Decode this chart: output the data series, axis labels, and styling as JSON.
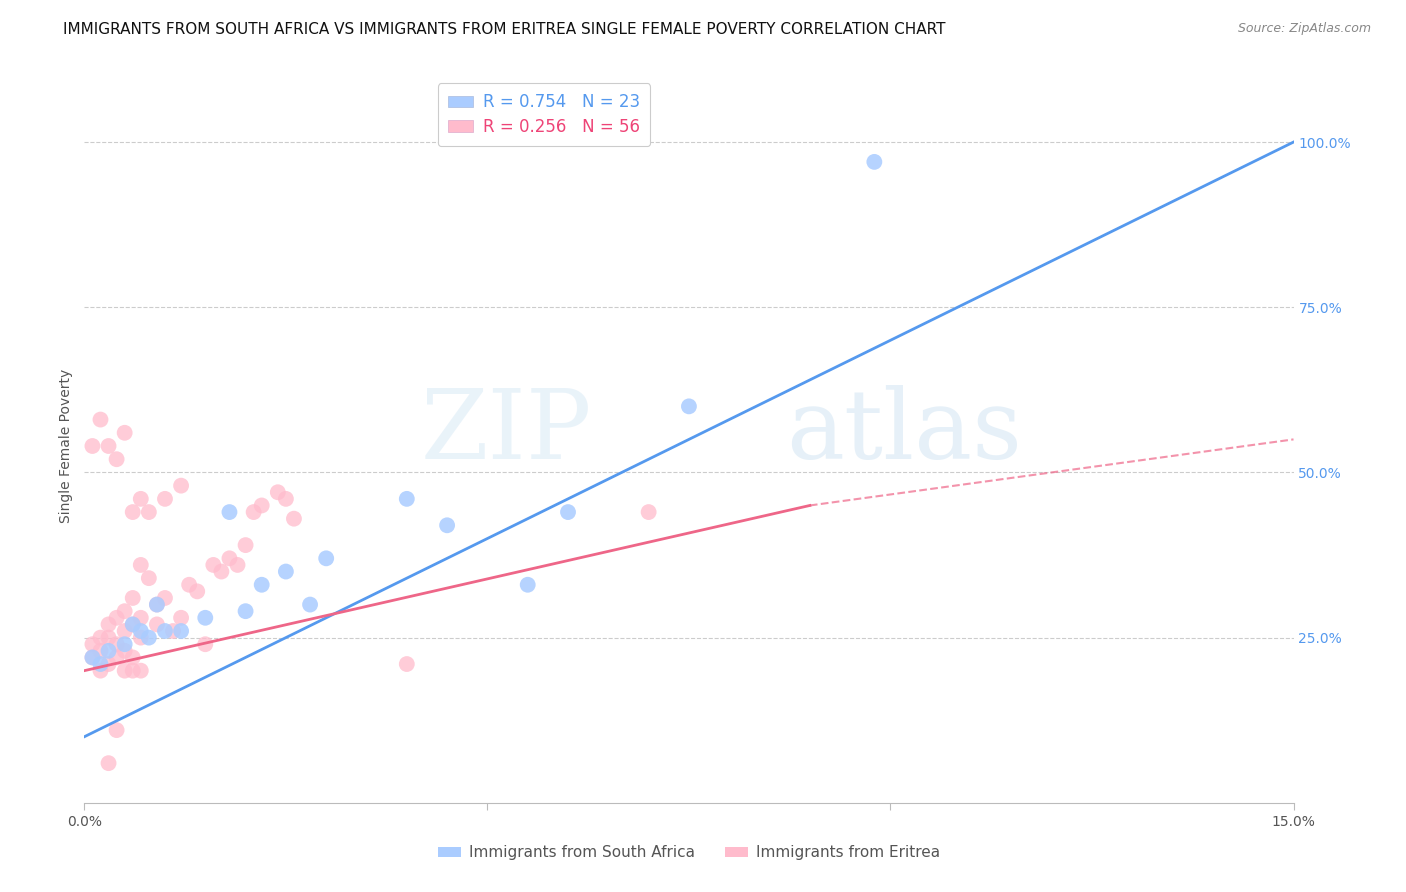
{
  "title": "IMMIGRANTS FROM SOUTH AFRICA VS IMMIGRANTS FROM ERITREA SINGLE FEMALE POVERTY CORRELATION CHART",
  "source": "Source: ZipAtlas.com",
  "ylabel": "Single Female Poverty",
  "ytick_labels": [
    "100.0%",
    "75.0%",
    "50.0%",
    "25.0%"
  ],
  "ytick_values": [
    1.0,
    0.75,
    0.5,
    0.25
  ],
  "xlim": [
    0.0,
    0.15
  ],
  "ylim": [
    0.0,
    1.08
  ],
  "legend_label1": "R = 0.754   N = 23",
  "legend_label2": "R = 0.256   N = 56",
  "watermark_zip": "ZIP",
  "watermark_atlas": "atlas",
  "sa_line": [
    0.1,
    1.0
  ],
  "er_line_solid": [
    0.2,
    0.45
  ],
  "er_line_dash": [
    0.2,
    0.55
  ],
  "south_africa_x": [
    0.001,
    0.002,
    0.003,
    0.005,
    0.006,
    0.007,
    0.008,
    0.009,
    0.01,
    0.012,
    0.015,
    0.018,
    0.02,
    0.022,
    0.025,
    0.028,
    0.03,
    0.04,
    0.045,
    0.055,
    0.06,
    0.075,
    0.098
  ],
  "south_africa_y": [
    0.22,
    0.21,
    0.23,
    0.24,
    0.27,
    0.26,
    0.25,
    0.3,
    0.26,
    0.26,
    0.28,
    0.44,
    0.29,
    0.33,
    0.35,
    0.3,
    0.37,
    0.46,
    0.42,
    0.33,
    0.44,
    0.6,
    0.97
  ],
  "eritrea_x": [
    0.001,
    0.001,
    0.002,
    0.002,
    0.002,
    0.003,
    0.003,
    0.003,
    0.004,
    0.004,
    0.004,
    0.005,
    0.005,
    0.005,
    0.005,
    0.006,
    0.006,
    0.006,
    0.007,
    0.007,
    0.007,
    0.008,
    0.009,
    0.009,
    0.01,
    0.011,
    0.012,
    0.013,
    0.014,
    0.015,
    0.016,
    0.017,
    0.018,
    0.019,
    0.02,
    0.021,
    0.022,
    0.024,
    0.025,
    0.026,
    0.001,
    0.002,
    0.003,
    0.004,
    0.005,
    0.006,
    0.007,
    0.008,
    0.01,
    0.012,
    0.003,
    0.004,
    0.006,
    0.007,
    0.04,
    0.07
  ],
  "eritrea_y": [
    0.24,
    0.22,
    0.25,
    0.23,
    0.2,
    0.27,
    0.25,
    0.21,
    0.28,
    0.24,
    0.22,
    0.29,
    0.26,
    0.23,
    0.2,
    0.31,
    0.27,
    0.22,
    0.36,
    0.28,
    0.25,
    0.34,
    0.3,
    0.27,
    0.31,
    0.26,
    0.28,
    0.33,
    0.32,
    0.24,
    0.36,
    0.35,
    0.37,
    0.36,
    0.39,
    0.44,
    0.45,
    0.47,
    0.46,
    0.43,
    0.54,
    0.58,
    0.54,
    0.52,
    0.56,
    0.44,
    0.46,
    0.44,
    0.46,
    0.48,
    0.06,
    0.11,
    0.2,
    0.2,
    0.21,
    0.44
  ],
  "line_color_sa": "#5599ee",
  "line_color_er": "#ee6688",
  "dot_color_sa": "#aaccff",
  "dot_color_er": "#ffbbcc",
  "title_fontsize": 11,
  "axis_label_fontsize": 10,
  "tick_fontsize": 10,
  "source_fontsize": 9,
  "xtick_positions": [
    0.0,
    0.05,
    0.1,
    0.15
  ],
  "xtick_labels": [
    "0.0%",
    "",
    "",
    "15.0%"
  ]
}
